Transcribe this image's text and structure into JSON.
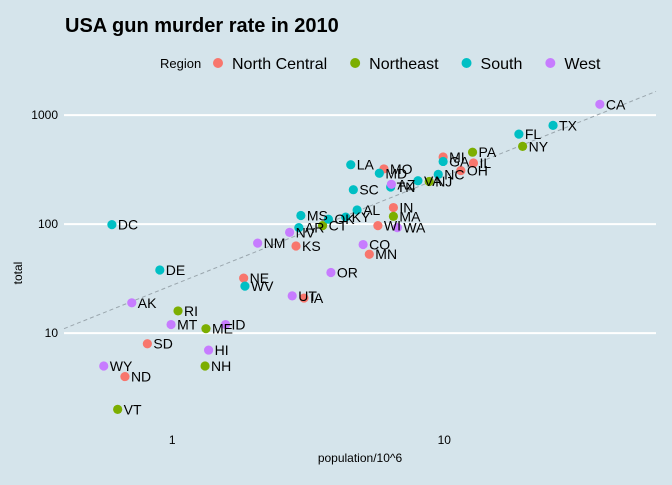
{
  "chart_data": {
    "type": "scatter",
    "title": "USA gun murder rate in 2010",
    "xlabel": "population/10^6",
    "ylabel": "total",
    "xscale": "log10",
    "yscale": "log10",
    "xlim": [
      0.4,
      60
    ],
    "ylim": [
      1.35,
      1700
    ],
    "xticks": [
      {
        "value": 1,
        "label": "1"
      },
      {
        "value": 10,
        "label": "10"
      }
    ],
    "yticks": [
      {
        "value": 10,
        "label": "10"
      },
      {
        "value": 100,
        "label": "100"
      },
      {
        "value": 1000,
        "label": "1000"
      }
    ],
    "grid": "horizontal major lines",
    "legend": {
      "title": "Region",
      "placement": "top"
    },
    "reference_line": {
      "style": "dashed",
      "description": "average rate line",
      "slope_log": 1,
      "intercept": 27.5
    },
    "colors": {
      "North Central": "#f8766d",
      "Northeast": "#7cae00",
      "South": "#00bfc4",
      "West": "#c77cff",
      "background": "#d5e4eb",
      "grid": "#ffffff",
      "reference_line": "#9aa6ad"
    },
    "series": [
      {
        "name": "North Central",
        "points": [
          {
            "label": "IA",
            "x": 3.05,
            "y": 21
          },
          {
            "label": "IL",
            "x": 12.8,
            "y": 364
          },
          {
            "label": "IN",
            "x": 6.5,
            "y": 142
          },
          {
            "label": "KS",
            "x": 2.85,
            "y": 63
          },
          {
            "label": "MI",
            "x": 9.9,
            "y": 413
          },
          {
            "label": "MN",
            "x": 5.3,
            "y": 53
          },
          {
            "label": "MO",
            "x": 6.0,
            "y": 321
          },
          {
            "label": "ND",
            "x": 0.67,
            "y": 4
          },
          {
            "label": "NE",
            "x": 1.83,
            "y": 32
          },
          {
            "label": "OH",
            "x": 11.5,
            "y": 310
          },
          {
            "label": "SD",
            "x": 0.81,
            "y": 8
          },
          {
            "label": "WI",
            "x": 5.7,
            "y": 97
          }
        ]
      },
      {
        "name": "Northeast",
        "points": [
          {
            "label": "CT",
            "x": 3.57,
            "y": 97
          },
          {
            "label": "MA",
            "x": 6.5,
            "y": 118
          },
          {
            "label": "ME",
            "x": 1.33,
            "y": 11
          },
          {
            "label": "NH",
            "x": 1.32,
            "y": 5
          },
          {
            "label": "NJ",
            "x": 8.8,
            "y": 246
          },
          {
            "label": "NY",
            "x": 19.4,
            "y": 517
          },
          {
            "label": "PA",
            "x": 12.7,
            "y": 457
          },
          {
            "label": "RI",
            "x": 1.05,
            "y": 16
          },
          {
            "label": "VT",
            "x": 0.63,
            "y": 2
          }
        ]
      },
      {
        "name": "South",
        "points": [
          {
            "label": "AL",
            "x": 4.78,
            "y": 135
          },
          {
            "label": "AR",
            "x": 2.92,
            "y": 93
          },
          {
            "label": "DC",
            "x": 0.6,
            "y": 99
          },
          {
            "label": "DE",
            "x": 0.9,
            "y": 38
          },
          {
            "label": "FL",
            "x": 18.8,
            "y": 669
          },
          {
            "label": "GA",
            "x": 9.9,
            "y": 376
          },
          {
            "label": "KY",
            "x": 4.34,
            "y": 116
          },
          {
            "label": "LA",
            "x": 4.53,
            "y": 351
          },
          {
            "label": "MD",
            "x": 5.77,
            "y": 293
          },
          {
            "label": "MS",
            "x": 2.97,
            "y": 120
          },
          {
            "label": "NC",
            "x": 9.5,
            "y": 286
          },
          {
            "label": "OK",
            "x": 3.75,
            "y": 111
          },
          {
            "label": "SC",
            "x": 4.63,
            "y": 207
          },
          {
            "label": "TN",
            "x": 6.35,
            "y": 219
          },
          {
            "label": "TX",
            "x": 25.1,
            "y": 805
          },
          {
            "label": "VA",
            "x": 8.0,
            "y": 250
          },
          {
            "label": "WV",
            "x": 1.85,
            "y": 27
          }
        ]
      },
      {
        "name": "West",
        "points": [
          {
            "label": "AK",
            "x": 0.71,
            "y": 19
          },
          {
            "label": "AZ",
            "x": 6.39,
            "y": 232
          },
          {
            "label": "CA",
            "x": 37.3,
            "y": 1257
          },
          {
            "label": "CO",
            "x": 5.03,
            "y": 65
          },
          {
            "label": "HI",
            "x": 1.36,
            "y": 7
          },
          {
            "label": "ID",
            "x": 1.57,
            "y": 12
          },
          {
            "label": "MT",
            "x": 0.99,
            "y": 12
          },
          {
            "label": "NM",
            "x": 2.06,
            "y": 67
          },
          {
            "label": "NV",
            "x": 2.7,
            "y": 84
          },
          {
            "label": "OR",
            "x": 3.83,
            "y": 36
          },
          {
            "label": "UT",
            "x": 2.76,
            "y": 22
          },
          {
            "label": "WA",
            "x": 6.72,
            "y": 93
          },
          {
            "label": "WY",
            "x": 0.56,
            "y": 5
          }
        ]
      }
    ]
  }
}
